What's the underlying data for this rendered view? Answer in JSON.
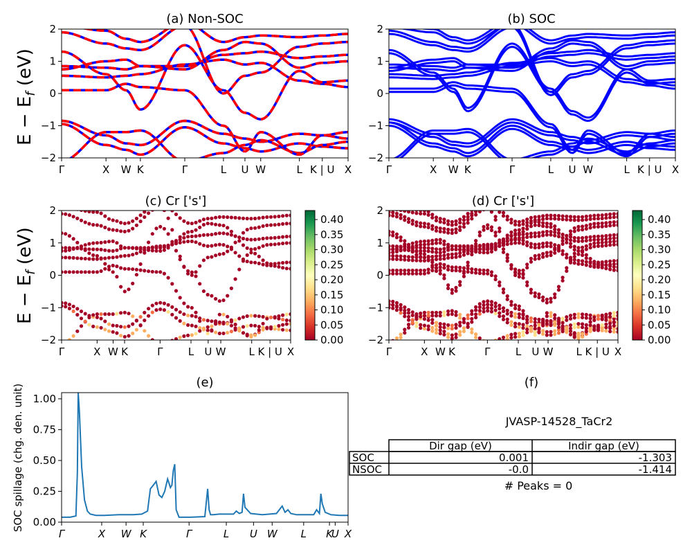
{
  "figure": {
    "shared_ylabel_tex": "E − E_f (eV)",
    "ylabel_main": "E − E",
    "ylabel_sub": "f",
    "ylabel_unit": " (eV)"
  },
  "chart_data": [
    {
      "id": "a",
      "type": "line",
      "title": "(a) Non-SOC",
      "xlabel": "",
      "ylabel": "E − E_f (eV)",
      "ylim": [
        -2,
        2
      ],
      "yticks": [
        -2,
        -1,
        0,
        1,
        2
      ],
      "xticklabels": [
        "Γ",
        "X",
        "W",
        "K",
        "Γ",
        "L",
        "U",
        "W",
        "L",
        "K | U",
        "X"
      ],
      "kpath_fractions": [
        0,
        0.155,
        0.225,
        0.275,
        0.43,
        0.565,
        0.64,
        0.695,
        0.83,
        0.91,
        1.0
      ],
      "series": [
        {
          "color": "#0000ff",
          "style": "solid"
        },
        {
          "color": "#ff0000",
          "style": "dashed"
        }
      ],
      "bands": [
        [
          -0.85,
          -1.3,
          -1.55,
          -1.6,
          -0.85,
          -1.25,
          -1.4,
          -1.5,
          -1.25,
          -1.3,
          -1.4
        ],
        [
          -0.95,
          -1.6,
          -1.75,
          -1.9,
          -1.05,
          -1.55,
          -1.7,
          -1.8,
          -1.55,
          -1.65,
          -1.7
        ],
        [
          -2.1,
          -1.2,
          -1.2,
          -1.15,
          -2.1,
          -1.85,
          -1.6,
          -1.45,
          -1.85,
          -1.6,
          -1.5
        ],
        [
          0.1,
          0.1,
          0.3,
          0.2,
          0.1,
          -1.0,
          -1.8,
          -1.2,
          -1.9,
          -1.3,
          -1.2
        ],
        [
          0.55,
          0.5,
          0.55,
          0.6,
          0.9,
          1.05,
          0.9,
          0.95,
          0.4,
          0.3,
          0.2
        ],
        [
          0.75,
          1.0,
          1.05,
          0.85,
          0.85,
          1.2,
          1.25,
          1.3,
          1.1,
          1.15,
          1.2
        ],
        [
          0.85,
          0.8,
          0.75,
          0.85,
          0.75,
          1.35,
          1.6,
          1.55,
          0.8,
          0.95,
          1.0
        ],
        [
          1.9,
          1.55,
          1.4,
          1.35,
          2.1,
          0.0,
          0.55,
          0.65,
          1.45,
          1.55,
          1.6
        ],
        [
          2.1,
          1.95,
          1.7,
          1.6,
          2.2,
          1.6,
          1.75,
          1.8,
          1.75,
          1.8,
          1.85
        ],
        [
          1.3,
          0.6,
          0.1,
          -0.5,
          1.5,
          0.1,
          -0.6,
          -0.8,
          0.7,
          0.35,
          0.4
        ]
      ]
    },
    {
      "id": "b",
      "type": "line",
      "title": "(b) SOC",
      "xlabel": "",
      "ylabel": "",
      "ylim": [
        -2,
        2
      ],
      "yticks": [
        -2,
        -1,
        0,
        1,
        2
      ],
      "xticklabels": [
        "Γ",
        "X",
        "W",
        "K",
        "Γ",
        "L",
        "U",
        "W",
        "L",
        "K | U",
        "X"
      ],
      "series": [
        {
          "color": "#0000ff",
          "style": "solid"
        }
      ],
      "note": "same band structure as (a), spin-orbit split"
    },
    {
      "id": "c",
      "type": "scatter",
      "title": "(c)  Cr ['s']",
      "ylim": [
        -2,
        2
      ],
      "yticks": [
        -2,
        -1,
        0,
        1,
        2
      ],
      "xticklabels": [
        "Γ",
        "X",
        "W",
        "K",
        "Γ",
        "L",
        "U",
        "W",
        "L",
        "K | U",
        "X"
      ],
      "colorbar": {
        "min": 0.0,
        "max": 0.43,
        "ticks": [
          "0.00",
          "0.05",
          "0.10",
          "0.15",
          "0.20",
          "0.25",
          "0.30",
          "0.35",
          "0.40"
        ],
        "colormap": "RdYlGn"
      }
    },
    {
      "id": "d",
      "type": "scatter",
      "title": "(d) Cr ['s']",
      "ylim": [
        -2,
        2
      ],
      "yticks": [
        -2,
        -1,
        0,
        1,
        2
      ],
      "xticklabels": [
        "Γ",
        "X",
        "W",
        "K",
        "Γ",
        "L",
        "U",
        "W",
        "L",
        "K | U",
        "X"
      ],
      "colorbar": {
        "min": 0.0,
        "max": 0.43,
        "ticks": [
          "0.00",
          "0.05",
          "0.10",
          "0.15",
          "0.20",
          "0.25",
          "0.30",
          "0.35",
          "0.40"
        ],
        "colormap": "RdYlGn"
      }
    },
    {
      "id": "e",
      "type": "line",
      "title": "(e)",
      "xlabel": "",
      "ylabel": "SOC spillage (chg. den. unit)",
      "ylim": [
        0,
        1.05
      ],
      "yticks": [
        "0.00",
        "0.25",
        "0.50",
        "0.75",
        "1.00"
      ],
      "xticklabels": [
        "Γ",
        "X",
        "W",
        "K",
        "Γ",
        "L",
        "U",
        "W",
        "L",
        "K",
        "U",
        "X"
      ],
      "kpath_fractions": [
        0,
        0.14,
        0.225,
        0.285,
        0.445,
        0.575,
        0.67,
        0.735,
        0.845,
        0.935,
        0.955,
        1.0
      ],
      "series": [
        {
          "color": "#1f77b4",
          "x": [
            0,
            0.03,
            0.05,
            0.055,
            0.058,
            0.062,
            0.07,
            0.08,
            0.09,
            0.1,
            0.12,
            0.15,
            0.2,
            0.25,
            0.28,
            0.3,
            0.31,
            0.32,
            0.33,
            0.34,
            0.35,
            0.36,
            0.37,
            0.38,
            0.385,
            0.39,
            0.395,
            0.4,
            0.41,
            0.42,
            0.45,
            0.5,
            0.5,
            0.51,
            0.515,
            0.52,
            0.53,
            0.55,
            0.6,
            0.61,
            0.62,
            0.63,
            0.635,
            0.64,
            0.66,
            0.7,
            0.75,
            0.77,
            0.78,
            0.79,
            0.8,
            0.82,
            0.84,
            0.88,
            0.89,
            0.9,
            0.905,
            0.91,
            0.92,
            0.94,
            0.97,
            1.0
          ],
          "values": [
            0.04,
            0.04,
            0.05,
            0.4,
            1.07,
            0.9,
            0.45,
            0.18,
            0.09,
            0.065,
            0.055,
            0.055,
            0.06,
            0.06,
            0.065,
            0.09,
            0.27,
            0.3,
            0.33,
            0.22,
            0.2,
            0.25,
            0.35,
            0.28,
            0.3,
            0.42,
            0.47,
            0.1,
            0.04,
            0.04,
            0.04,
            0.045,
            0.045,
            0.27,
            0.1,
            0.06,
            0.06,
            0.065,
            0.065,
            0.09,
            0.07,
            0.08,
            0.23,
            0.12,
            0.07,
            0.06,
            0.07,
            0.13,
            0.08,
            0.1,
            0.07,
            0.06,
            0.06,
            0.06,
            0.1,
            0.07,
            0.23,
            0.15,
            0.08,
            0.06,
            0.055,
            0.055
          ]
        }
      ]
    },
    {
      "id": "f",
      "type": "table",
      "title": "(f)",
      "subtitle": "JVASP-14528_TaCr2",
      "columns": [
        "Dir gap (eV)",
        "Indir gap (eV)"
      ],
      "rows": [
        {
          "label": "SOC",
          "values": [
            "0.001",
            "-1.303"
          ]
        },
        {
          "label": "NSOC",
          "values": [
            "-0.0",
            "-1.414"
          ]
        }
      ],
      "footer": "# Peaks = 0"
    }
  ]
}
